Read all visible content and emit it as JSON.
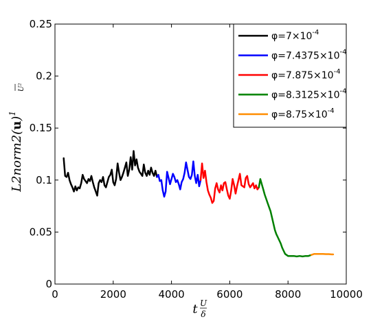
{
  "chart_data": {
    "type": "line",
    "title": "",
    "xlabel": "t U/δ",
    "ylabel": "L2norm2(u) 1/U²",
    "xlim": [
      0,
      10000
    ],
    "ylim": [
      0,
      0.25
    ],
    "x_ticks": [
      0,
      2000,
      4000,
      6000,
      8000,
      10000
    ],
    "x_tick_labels": [
      "0",
      "2000",
      "4000",
      "6000",
      "8000",
      "10000"
    ],
    "y_ticks": [
      0,
      0.05,
      0.1,
      0.15,
      0.2,
      0.25
    ],
    "y_tick_labels": [
      "0",
      "0.05",
      "0.1",
      "0.15",
      "0.2",
      "0.25"
    ],
    "grid": false,
    "legend_position": "top-right",
    "series": [
      {
        "name": "φ=7×10⁻⁴",
        "legend": {
          "base": "φ=7×10",
          "exp": "-4"
        },
        "color": "#000000",
        "x": [
          300,
          350,
          400,
          450,
          500,
          550,
          600,
          650,
          700,
          750,
          800,
          850,
          900,
          950,
          1000,
          1050,
          1100,
          1150,
          1200,
          1250,
          1300,
          1350,
          1400,
          1450,
          1500,
          1550,
          1600,
          1650,
          1700,
          1750,
          1800,
          1850,
          1900,
          1950,
          2000,
          2050,
          2100,
          2150,
          2200,
          2250,
          2300,
          2350,
          2400,
          2450,
          2500,
          2550,
          2600,
          2650,
          2700,
          2750,
          2800,
          2850,
          2900,
          2950,
          3000,
          3050,
          3100,
          3150,
          3200,
          3250,
          3300,
          3350,
          3400,
          3450,
          3500
        ],
        "y": [
          0.121,
          0.104,
          0.103,
          0.107,
          0.1,
          0.096,
          0.093,
          0.089,
          0.094,
          0.09,
          0.093,
          0.092,
          0.097,
          0.105,
          0.101,
          0.099,
          0.097,
          0.101,
          0.099,
          0.104,
          0.098,
          0.093,
          0.089,
          0.085,
          0.097,
          0.1,
          0.098,
          0.103,
          0.095,
          0.093,
          0.098,
          0.103,
          0.105,
          0.11,
          0.098,
          0.095,
          0.101,
          0.116,
          0.107,
          0.1,
          0.103,
          0.107,
          0.112,
          0.117,
          0.104,
          0.11,
          0.122,
          0.11,
          0.128,
          0.114,
          0.12,
          0.112,
          0.108,
          0.106,
          0.104,
          0.115,
          0.107,
          0.104,
          0.109,
          0.105,
          0.112,
          0.107,
          0.104,
          0.109,
          0.103
        ]
      },
      {
        "name": "φ=7.4375×10⁻⁴",
        "legend": {
          "base": "φ=7.4375×10",
          "exp": "-4"
        },
        "color": "#0000ff",
        "x": [
          3500,
          3550,
          3600,
          3650,
          3700,
          3750,
          3800,
          3850,
          3900,
          3950,
          4000,
          4050,
          4100,
          4150,
          4200,
          4250,
          4300,
          4350,
          4400,
          4450,
          4500,
          4550,
          4600,
          4650,
          4700,
          4750,
          4800,
          4850,
          4900,
          4950,
          5000
        ],
        "y": [
          0.103,
          0.105,
          0.099,
          0.1,
          0.09,
          0.084,
          0.089,
          0.108,
          0.102,
          0.096,
          0.101,
          0.106,
          0.103,
          0.098,
          0.1,
          0.096,
          0.091,
          0.098,
          0.101,
          0.107,
          0.117,
          0.11,
          0.103,
          0.101,
          0.105,
          0.118,
          0.104,
          0.097,
          0.105,
          0.094,
          0.1
        ]
      },
      {
        "name": "φ=7.875×10⁻⁴",
        "legend": {
          "base": "φ=7.875×10",
          "exp": "-4"
        },
        "color": "#ff0000",
        "x": [
          5000,
          5050,
          5100,
          5150,
          5200,
          5250,
          5300,
          5350,
          5400,
          5450,
          5500,
          5550,
          5600,
          5650,
          5700,
          5750,
          5800,
          5850,
          5900,
          5950,
          6000,
          6050,
          6100,
          6150,
          6200,
          6250,
          6300,
          6350,
          6400,
          6450,
          6500,
          6550,
          6600,
          6650,
          6700,
          6750,
          6800,
          6850,
          6900,
          6950,
          7000
        ],
        "y": [
          0.1,
          0.116,
          0.102,
          0.109,
          0.098,
          0.09,
          0.086,
          0.083,
          0.078,
          0.08,
          0.092,
          0.097,
          0.091,
          0.088,
          0.095,
          0.09,
          0.097,
          0.098,
          0.091,
          0.085,
          0.082,
          0.09,
          0.101,
          0.095,
          0.087,
          0.094,
          0.1,
          0.106,
          0.095,
          0.094,
          0.093,
          0.102,
          0.104,
          0.096,
          0.093,
          0.095,
          0.097,
          0.092,
          0.095,
          0.091,
          0.093
        ]
      },
      {
        "name": "φ=8.3125×10⁻⁴",
        "legend": {
          "base": "φ=8.3125×10",
          "exp": "-4"
        },
        "color": "#008000",
        "x": [
          7000,
          7050,
          7100,
          7150,
          7200,
          7250,
          7300,
          7350,
          7400,
          7450,
          7500,
          7550,
          7600,
          7650,
          7700,
          7750,
          7800,
          7850,
          7900,
          7950,
          8000,
          8100,
          8200,
          8300,
          8400,
          8500,
          8600,
          8700,
          8800
        ],
        "y": [
          0.093,
          0.101,
          0.096,
          0.091,
          0.086,
          0.082,
          0.078,
          0.074,
          0.07,
          0.064,
          0.058,
          0.052,
          0.048,
          0.045,
          0.042,
          0.039,
          0.035,
          0.032,
          0.029,
          0.028,
          0.027,
          0.027,
          0.027,
          0.0265,
          0.027,
          0.0265,
          0.027,
          0.027,
          0.028
        ]
      },
      {
        "name": "φ=8.75×10⁻⁴",
        "legend": {
          "base": "φ=8.75×10",
          "exp": "-4"
        },
        "color": "#ff8c00",
        "x": [
          8800,
          8900,
          9000,
          9100,
          9200,
          9300,
          9400,
          9500,
          9550
        ],
        "y": [
          0.028,
          0.029,
          0.029,
          0.029,
          0.029,
          0.0288,
          0.0288,
          0.0285,
          0.0285
        ]
      }
    ]
  }
}
